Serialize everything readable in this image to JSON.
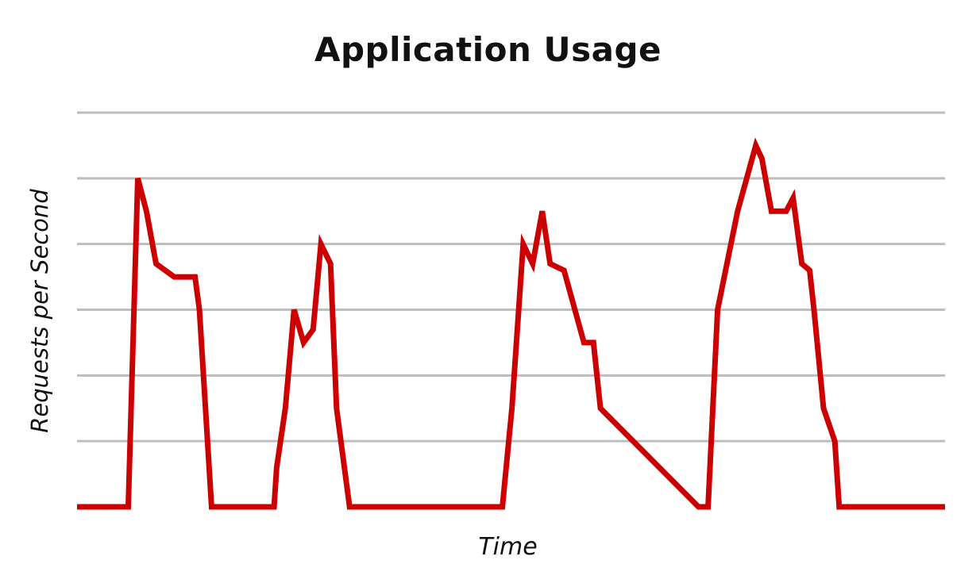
{
  "chart_data": {
    "type": "line",
    "title": "Application Usage",
    "xlabel": "Time",
    "ylabel": "Requests per Second",
    "x_ticks_visible": false,
    "y_ticks_visible": false,
    "grid": true,
    "grid_lines": 6,
    "legend": "none",
    "xlim": [
      0,
      100
    ],
    "ylim": [
      0,
      6
    ],
    "series": [
      {
        "color": "#cc0000",
        "x": [
          0,
          5.9,
          7.0,
          8.0,
          9.1,
          11.2,
          13.6,
          14.1,
          15.5,
          17.1,
          22.7,
          23.0,
          24.0,
          25.0,
          26.1,
          27.2,
          28.1,
          29.2,
          29.9,
          31.4,
          32.5,
          49.0,
          50.1,
          51.4,
          52.5,
          53.6,
          54.5,
          56.1,
          58.4,
          59.5,
          60.3,
          71.6,
          72.7,
          73.8,
          76.1,
          78.2,
          78.9,
          80.0,
          81.7,
          82.5,
          83.5,
          84.4,
          84.9,
          86.0,
          87.3,
          87.8,
          88.8,
          90.5,
          100
        ],
        "values": [
          0,
          0,
          5.0,
          4.5,
          3.7,
          3.5,
          3.5,
          3.0,
          0,
          0,
          0,
          0.6,
          1.5,
          3.0,
          2.5,
          2.7,
          4.0,
          3.7,
          1.5,
          0,
          0,
          0,
          1.5,
          4.0,
          3.7,
          4.5,
          3.7,
          3.6,
          2.5,
          2.5,
          1.5,
          0,
          0,
          3.0,
          4.5,
          5.5,
          5.3,
          4.5,
          4.5,
          4.7,
          3.7,
          3.6,
          3.0,
          1.5,
          1.0,
          0,
          0,
          0,
          0
        ]
      }
    ]
  }
}
